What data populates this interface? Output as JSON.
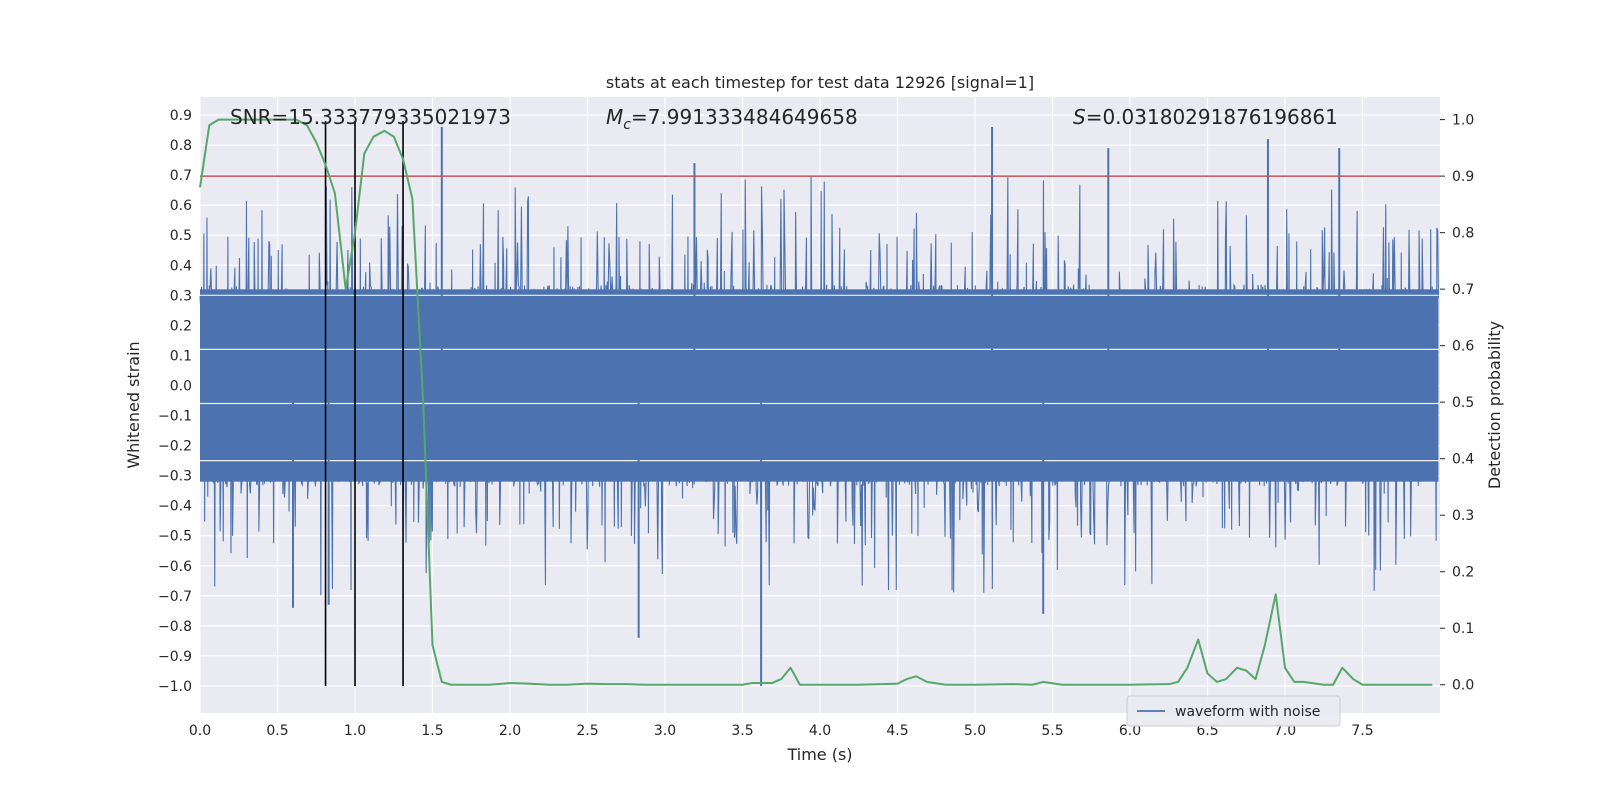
{
  "chart_data": {
    "type": "line",
    "title": "stats at each timestep for test data 12926 [signal=1]",
    "xlabel": "Time (s)",
    "ylabel_left": "Whitened strain",
    "ylabel_right": "Detection probability",
    "xlim": [
      0.0,
      8.0
    ],
    "ylim_left": [
      -1.09,
      0.96
    ],
    "ylim_right": [
      -0.05,
      1.04
    ],
    "x_ticks": [
      "0.0",
      "0.5",
      "1.0",
      "1.5",
      "2.0",
      "2.5",
      "3.0",
      "3.5",
      "4.0",
      "4.5",
      "5.0",
      "5.5",
      "6.0",
      "6.5",
      "7.0",
      "7.5"
    ],
    "x_tick_values": [
      0.0,
      0.5,
      1.0,
      1.5,
      2.0,
      2.5,
      3.0,
      3.5,
      4.0,
      4.5,
      5.0,
      5.5,
      6.0,
      6.5,
      7.0,
      7.5
    ],
    "y_left_ticks": [
      "0.9",
      "0.8",
      "0.7",
      "0.6",
      "0.5",
      "0.4",
      "0.3",
      "0.2",
      "0.1",
      "0.0",
      "−0.1",
      "−0.2",
      "−0.3",
      "−0.4",
      "−0.5",
      "−0.6",
      "−0.7",
      "−0.8",
      "−0.9",
      "−1.0"
    ],
    "y_left_tick_values": [
      0.9,
      0.8,
      0.7,
      0.6,
      0.5,
      0.4,
      0.3,
      0.2,
      0.1,
      0.0,
      -0.1,
      -0.2,
      -0.3,
      -0.4,
      -0.5,
      -0.6,
      -0.7,
      -0.8,
      -0.9,
      -1.0
    ],
    "y_right_ticks": [
      "1.0",
      "0.9",
      "0.8",
      "0.7",
      "0.6",
      "0.5",
      "0.4",
      "0.3",
      "0.2",
      "0.1",
      "0.0"
    ],
    "y_right_tick_values": [
      1.0,
      0.9,
      0.8,
      0.7,
      0.6,
      0.5,
      0.4,
      0.3,
      0.2,
      0.1,
      0.0
    ],
    "grid": true,
    "legend": {
      "placement": "lower-right",
      "entries": [
        "waveform with noise"
      ]
    },
    "annotations": {
      "snr": "SNR=15.333779335021973",
      "mc_symbol": "M",
      "mc_subscript": "c",
      "mc_value": "=7.991333484649658",
      "s_symbol": "S",
      "s_value": "=0.03180291876196861"
    },
    "colors": {
      "waveform": "#4c72b0",
      "probability": "#55a868",
      "threshold": "#c44e52",
      "markers": "#000000",
      "axes_background": "#eaeaf2",
      "grid": "#ffffff"
    },
    "waveform": {
      "name": "waveform with noise",
      "x_range": [
        0.0,
        7.99
      ],
      "typical_band": [
        -0.32,
        0.32
      ],
      "envelope_max": 0.56,
      "envelope_min": -0.5,
      "peaks": [
        {
          "x": 1.56,
          "y": 0.86
        },
        {
          "x": 5.11,
          "y": 0.86
        },
        {
          "x": 6.89,
          "y": 0.82
        },
        {
          "x": 5.86,
          "y": 0.79
        },
        {
          "x": 7.35,
          "y": 0.79
        },
        {
          "x": 3.19,
          "y": 0.74
        },
        {
          "x": 2.83,
          "y": -0.84
        },
        {
          "x": 3.62,
          "y": -1.0
        },
        {
          "x": 5.44,
          "y": -0.76
        },
        {
          "x": 0.6,
          "y": -0.74
        },
        {
          "x": 0.83,
          "y": -0.73
        }
      ]
    },
    "threshold_line": {
      "axis": "right",
      "y": 0.9
    },
    "marker_lines": [
      {
        "x": 0.81,
        "y_top": 0.88,
        "y_bottom": -1.0
      },
      {
        "x": 1.0,
        "y_top": 0.88,
        "y_bottom": -1.0
      },
      {
        "x": 1.31,
        "y_top": 0.88,
        "y_bottom": -1.0
      }
    ],
    "detection_probability": {
      "x": [
        0.0,
        0.06,
        0.12,
        0.25,
        0.37,
        0.5,
        0.62,
        0.69,
        0.75,
        0.81,
        0.87,
        0.94,
        1.0,
        1.06,
        1.12,
        1.19,
        1.25,
        1.31,
        1.37,
        1.44,
        1.5,
        1.56,
        1.62,
        1.75,
        1.87,
        2.0,
        2.12,
        2.25,
        2.37,
        2.5,
        2.62,
        2.75,
        2.87,
        3.0,
        3.25,
        3.5,
        3.56,
        3.62,
        3.69,
        3.75,
        3.81,
        3.87,
        4.0,
        4.25,
        4.5,
        4.56,
        4.62,
        4.69,
        4.81,
        5.0,
        5.25,
        5.37,
        5.44,
        5.56,
        5.75,
        6.0,
        6.25,
        6.31,
        6.37,
        6.44,
        6.5,
        6.56,
        6.62,
        6.69,
        6.75,
        6.81,
        6.87,
        6.94,
        7.0,
        7.06,
        7.12,
        7.25,
        7.31,
        7.37,
        7.44,
        7.5,
        7.75,
        7.95
      ],
      "y": [
        0.88,
        0.99,
        1.0,
        1.0,
        1.0,
        1.0,
        1.0,
        0.99,
        0.96,
        0.92,
        0.87,
        0.7,
        0.8,
        0.94,
        0.97,
        0.98,
        0.97,
        0.93,
        0.86,
        0.5,
        0.07,
        0.005,
        0.0,
        0.0,
        0.0,
        0.003,
        0.002,
        0.0,
        0.0,
        0.002,
        0.001,
        0.001,
        0.0,
        0.0,
        0.0,
        0.0,
        0.003,
        0.003,
        0.003,
        0.01,
        0.03,
        0.0,
        0.0,
        0.0,
        0.002,
        0.01,
        0.015,
        0.005,
        0.0,
        0.0,
        0.001,
        0.0,
        0.005,
        0.0,
        0.0,
        0.0,
        0.001,
        0.005,
        0.03,
        0.08,
        0.02,
        0.005,
        0.01,
        0.03,
        0.025,
        0.01,
        0.07,
        0.16,
        0.03,
        0.005,
        0.005,
        0.0,
        0.0,
        0.03,
        0.01,
        0.0,
        0.0,
        0.0
      ]
    }
  }
}
